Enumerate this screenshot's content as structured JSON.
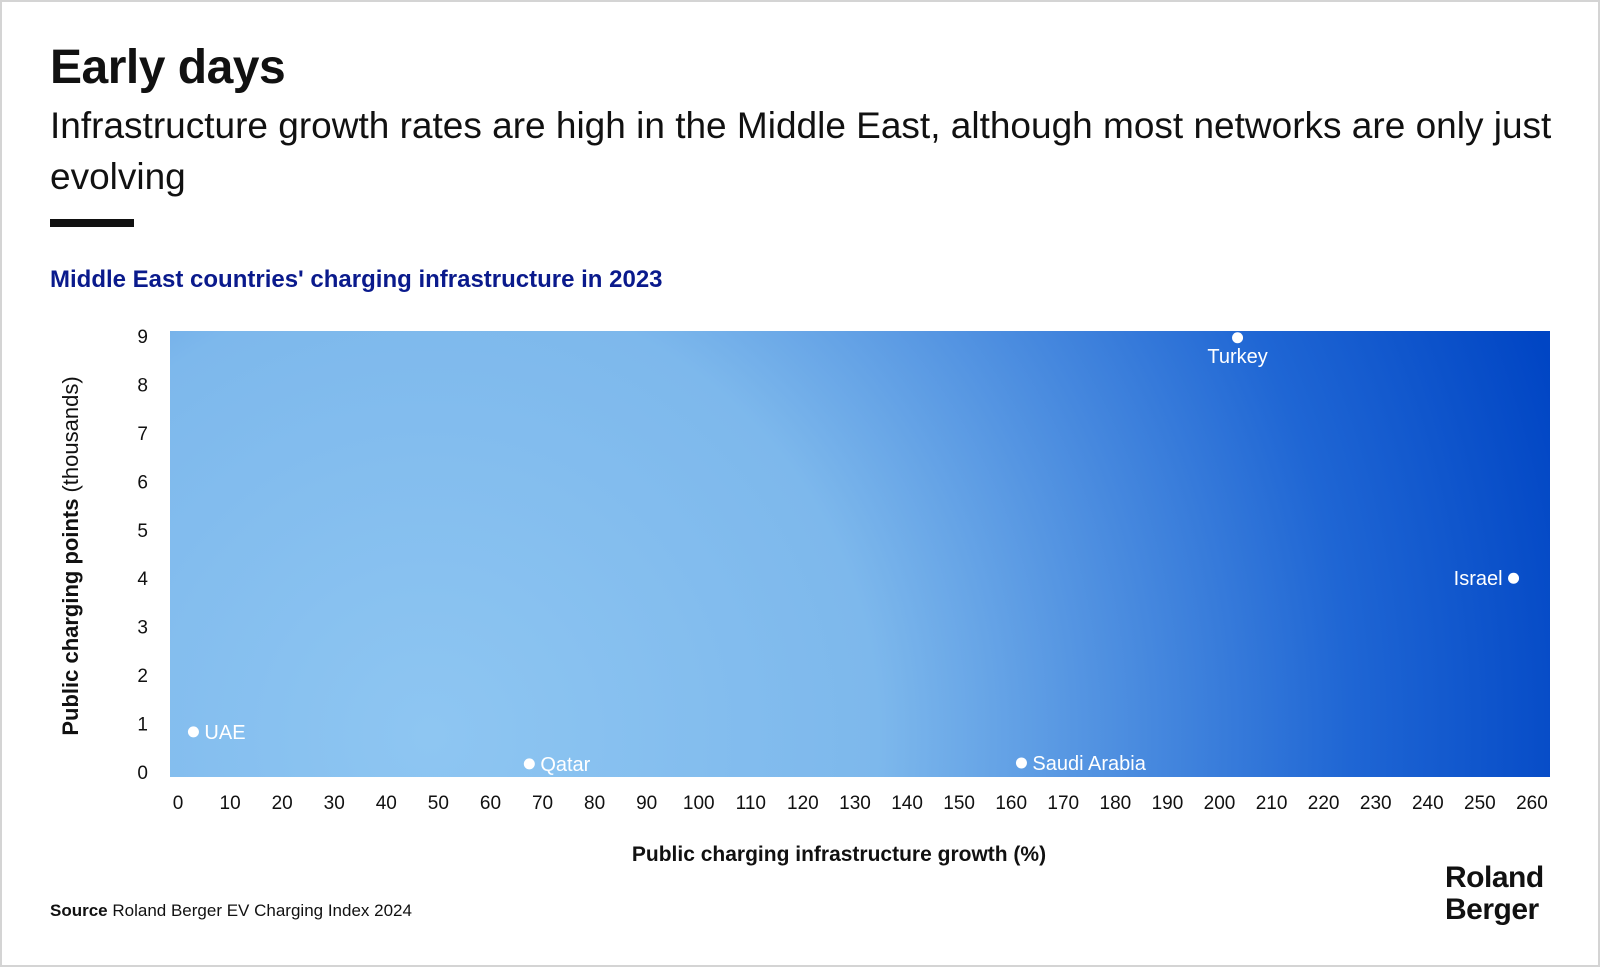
{
  "title": "Early days",
  "subtitle": "Infrastructure growth rates are high in the Middle East, although most networks are only just evolving",
  "source_label": "Source",
  "source_text": "Roland Berger EV Charging Index 2024",
  "logo": {
    "line1": "Roland",
    "line2": "Berger"
  },
  "colors": {
    "title_text": "#111111",
    "chart_title": "#0a1a8c",
    "plot_light": "#8ec6f2",
    "plot_dark": "#0045c4",
    "point": "#ffffff"
  },
  "chart_data": {
    "type": "scatter",
    "title": "Middle East countries' charging infrastructure in 2023",
    "xlabel": "Public charging infrastructure growth (%)",
    "ylabel_bold": "Public charging points",
    "ylabel_unit": "(thousands)",
    "xlim": [
      0,
      265
    ],
    "ylim": [
      -0.1,
      9.1
    ],
    "xticks": [
      0,
      10,
      20,
      30,
      40,
      50,
      60,
      70,
      80,
      90,
      100,
      110,
      120,
      130,
      140,
      150,
      160,
      170,
      180,
      190,
      200,
      210,
      220,
      230,
      240,
      250,
      260
    ],
    "yticks": [
      0,
      1,
      2,
      3,
      4,
      5,
      6,
      7,
      8,
      9
    ],
    "grid": false,
    "points": [
      {
        "label": "UAE",
        "x": 4.5,
        "y": 0.83,
        "label_pos": "right"
      },
      {
        "label": "Qatar",
        "x": 69,
        "y": 0.17,
        "label_pos": "right"
      },
      {
        "label": "Saudi Arabia",
        "x": 163.5,
        "y": 0.19,
        "label_pos": "right"
      },
      {
        "label": "Turkey",
        "x": 205,
        "y": 8.96,
        "label_pos": "below"
      },
      {
        "label": "Israel",
        "x": 258,
        "y": 4.0,
        "label_pos": "left"
      }
    ]
  }
}
